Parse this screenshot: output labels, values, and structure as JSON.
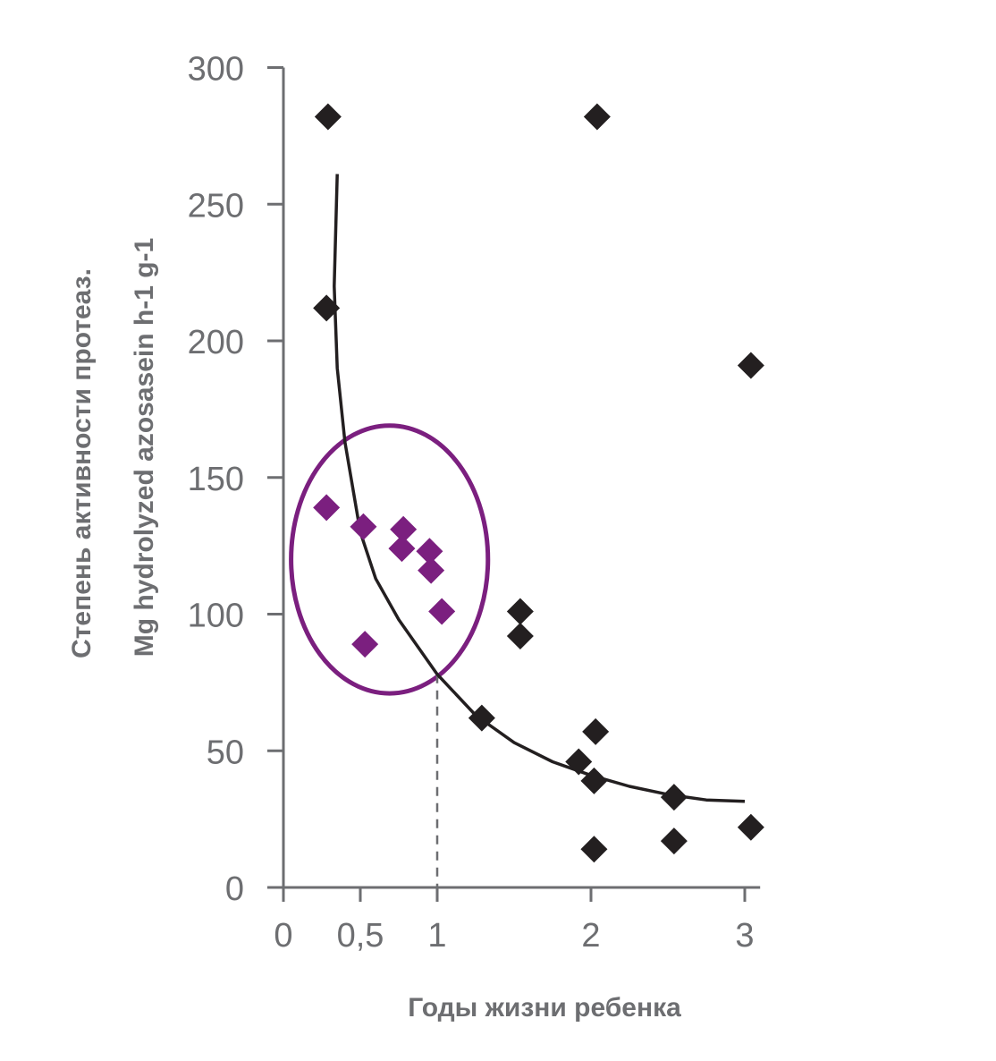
{
  "chart_data": {
    "type": "scatter",
    "title": "",
    "xlabel": "Годы жизни ребенка",
    "ylabel": "Степень активности протеаз.",
    "ylabel2": "Mg  hydrolyzed azosasein h-1 g-1",
    "xlim": [
      0,
      3.1
    ],
    "ylim": [
      0,
      300
    ],
    "x_ticks": [
      {
        "value": 0,
        "label": "0"
      },
      {
        "value": 0.5,
        "label": "0,5"
      },
      {
        "value": 1,
        "label": "1"
      },
      {
        "value": 2,
        "label": "2"
      },
      {
        "value": 3,
        "label": "3"
      }
    ],
    "y_ticks": [
      {
        "value": 0,
        "label": "0"
      },
      {
        "value": 50,
        "label": "50"
      },
      {
        "value": 100,
        "label": "100"
      },
      {
        "value": 150,
        "label": "150"
      },
      {
        "value": 200,
        "label": "200"
      },
      {
        "value": 250,
        "label": "250"
      },
      {
        "value": 300,
        "label": "300"
      }
    ],
    "grid": false,
    "series": [
      {
        "color": "#231f20",
        "marker": "diamond",
        "points": [
          {
            "x": 0.29,
            "y": 282
          },
          {
            "x": 2.04,
            "y": 282
          },
          {
            "x": 0.28,
            "y": 212
          },
          {
            "x": 3.04,
            "y": 191
          },
          {
            "x": 1.54,
            "y": 101
          },
          {
            "x": 1.54,
            "y": 92
          },
          {
            "x": 1.29,
            "y": 62
          },
          {
            "x": 2.03,
            "y": 57
          },
          {
            "x": 1.92,
            "y": 46
          },
          {
            "x": 2.02,
            "y": 39
          },
          {
            "x": 2.54,
            "y": 33
          },
          {
            "x": 3.04,
            "y": 22
          },
          {
            "x": 2.54,
            "y": 17
          },
          {
            "x": 2.02,
            "y": 14
          }
        ]
      },
      {
        "color": "#7b1f7f",
        "marker": "diamond",
        "points": [
          {
            "x": 0.28,
            "y": 139
          },
          {
            "x": 0.52,
            "y": 132
          },
          {
            "x": 0.78,
            "y": 131
          },
          {
            "x": 0.77,
            "y": 124
          },
          {
            "x": 0.95,
            "y": 123
          },
          {
            "x": 0.96,
            "y": 116
          },
          {
            "x": 1.03,
            "y": 101
          },
          {
            "x": 0.53,
            "y": 89
          }
        ]
      }
    ],
    "trend_curve": {
      "color": "#231f20",
      "points": [
        {
          "x": 0.35,
          "y": 261
        },
        {
          "x": 0.33,
          "y": 220
        },
        {
          "x": 0.35,
          "y": 190
        },
        {
          "x": 0.4,
          "y": 163
        },
        {
          "x": 0.5,
          "y": 130
        },
        {
          "x": 0.6,
          "y": 113
        },
        {
          "x": 0.75,
          "y": 98
        },
        {
          "x": 1.0,
          "y": 78
        },
        {
          "x": 1.25,
          "y": 63
        },
        {
          "x": 1.5,
          "y": 53
        },
        {
          "x": 1.75,
          "y": 46
        },
        {
          "x": 2.0,
          "y": 41
        },
        {
          "x": 2.25,
          "y": 37
        },
        {
          "x": 2.5,
          "y": 34
        },
        {
          "x": 2.75,
          "y": 32
        },
        {
          "x": 3.0,
          "y": 31.5
        }
      ]
    },
    "highlight_ellipse": {
      "color": "#7b1f7f",
      "cx": 0.69,
      "cy": 120,
      "rx": 0.64,
      "ry": 49
    },
    "reference_line": {
      "x": 1,
      "y_from": 0,
      "y_to": 78,
      "style": "dashed",
      "color": "#6d6e71"
    }
  }
}
